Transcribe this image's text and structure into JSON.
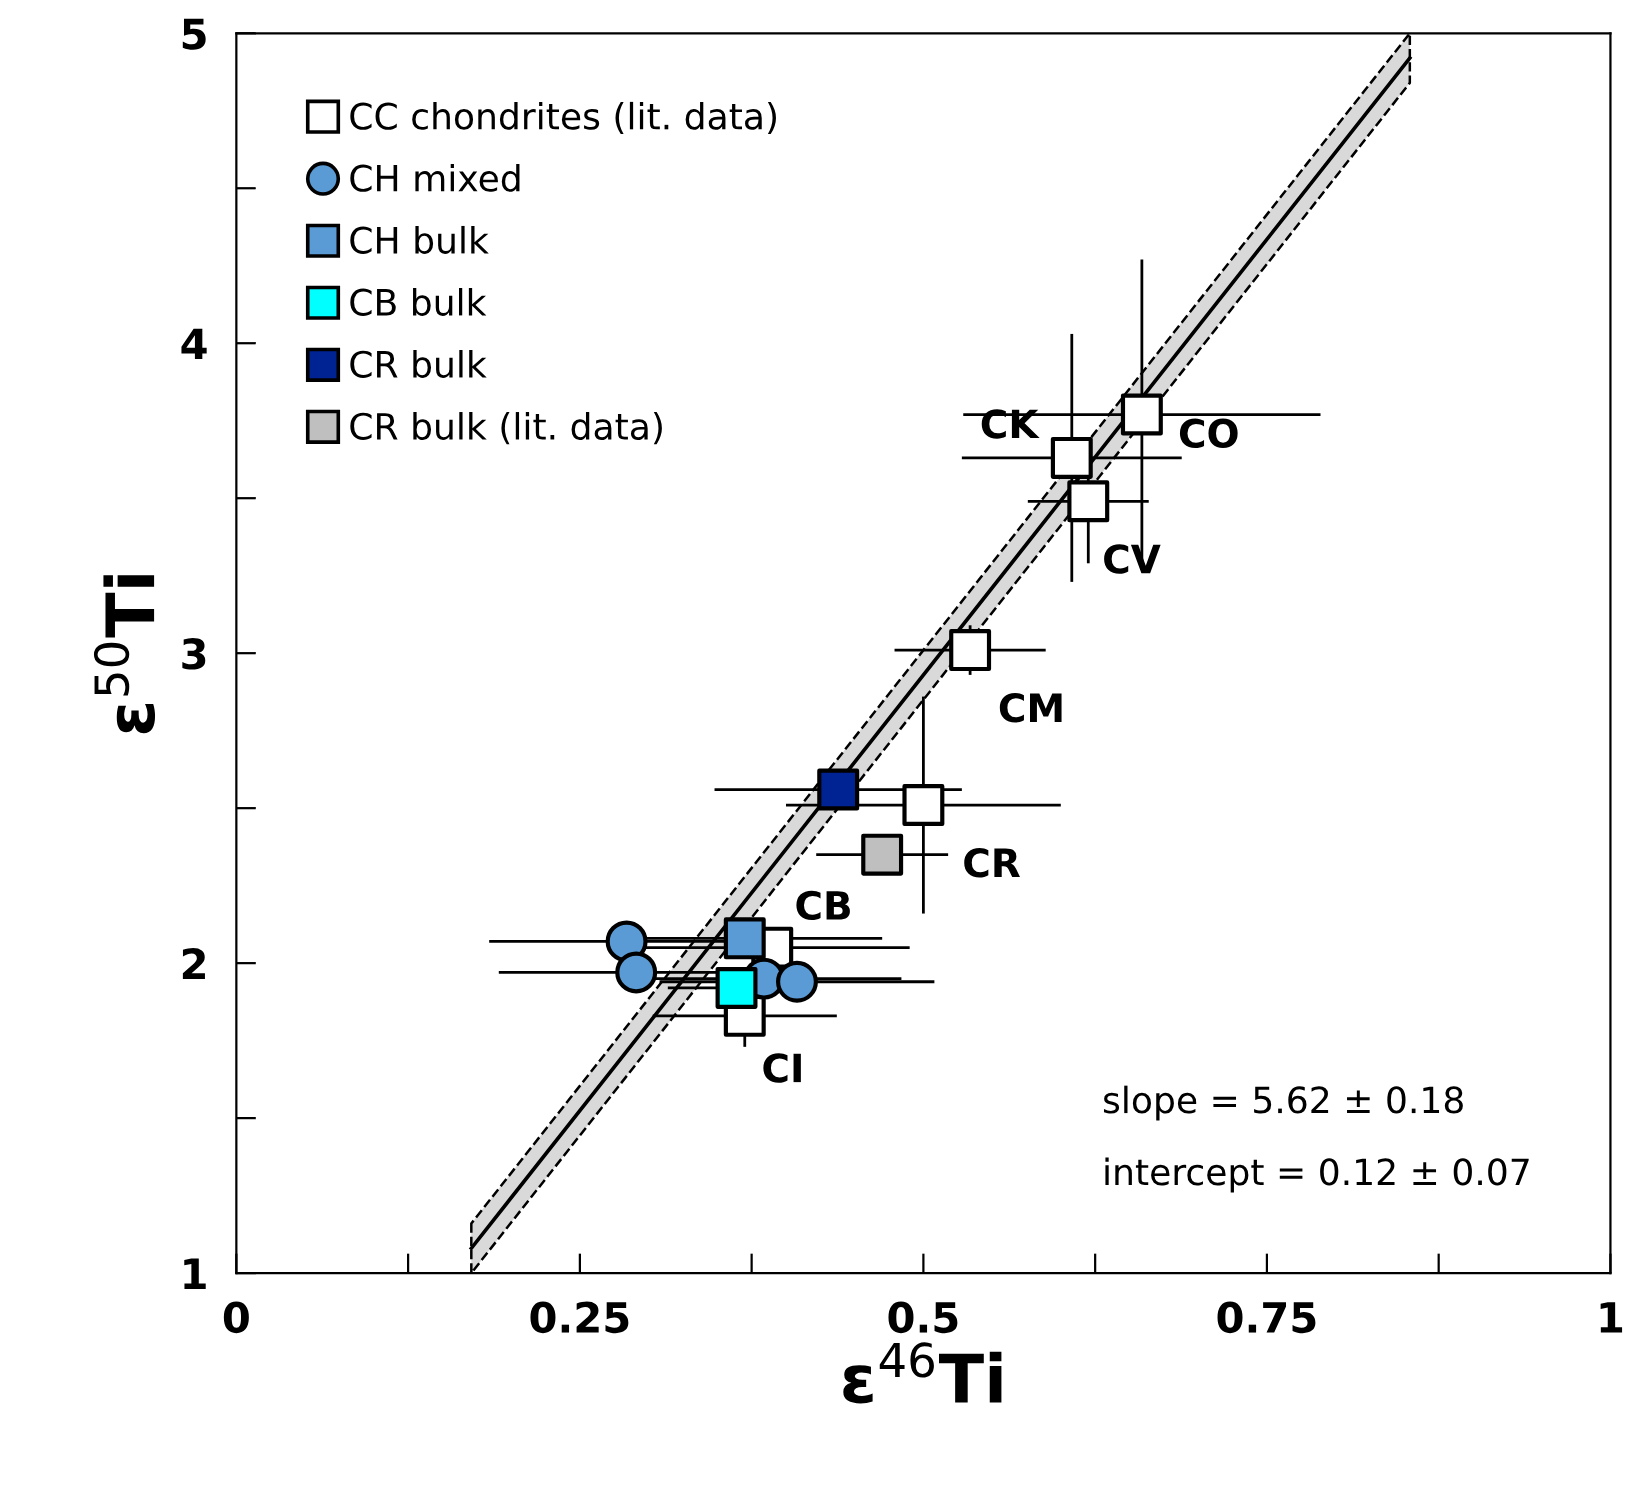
{
  "chart_data": {
    "type": "scatter",
    "xlabel": "ε$^{46}$Ti",
    "ylabel": "ε$^{50}$Ti",
    "xlim": [
      0,
      1
    ],
    "ylim": [
      1,
      5
    ],
    "xticks": [
      0,
      {
        "value": 0.125,
        "label": null
      },
      0.25,
      {
        "value": 0.375,
        "label": null
      },
      0.5,
      {
        "value": 0.625,
        "label": null
      },
      0.75,
      {
        "value": 0.875,
        "label": null
      },
      1
    ],
    "yticks": [
      1,
      {
        "value": 1.5,
        "label": null
      },
      2,
      {
        "value": 2.5,
        "label": null
      },
      3,
      {
        "value": 3.5,
        "label": null
      },
      4,
      {
        "value": 4.5,
        "label": null
      },
      5
    ],
    "grid": false,
    "legend": "top left",
    "series": [
      {
        "type": "line",
        "color": "#000000",
        "x": [
          0.171,
          0.854
        ],
        "values": [
          1.08,
          4.92
        ],
        "lower": [
          1.0,
          4.84
        ],
        "upper": [
          1.16,
          5.0
        ],
        "marker": "none"
      },
      {
        "name": "CC chondrites (lit. data)",
        "color": "#ffffff",
        "marker": "square",
        "x": [
          0.659,
          0.608,
          0.62,
          0.534,
          0.5,
          0.39,
          0.37
        ],
        "values": [
          3.77,
          3.63,
          3.49,
          3.01,
          2.51,
          2.05,
          1.83
        ],
        "value_labels": [
          "CO",
          "CK",
          "CV",
          "CM",
          "CR",
          "CB",
          "CI"
        ],
        "xerrors": [
          0.13,
          0.08,
          0.044,
          0.055,
          0.1,
          0.1,
          0.067
        ],
        "errors": [
          0.5,
          0.4,
          0.2,
          0.08,
          0.35,
          0.05,
          0.1
        ]
      },
      {
        "name": "CH mixed",
        "color": "#5b9bd5",
        "marker": "circle",
        "x": [
          0.284,
          0.291,
          0.355,
          0.384,
          0.408
        ],
        "values": [
          2.07,
          1.97,
          null,
          1.95,
          1.94
        ],
        "xerrors": [
          0.1,
          0.1,
          null,
          0.1,
          0.1
        ]
      },
      {
        "name": "CH bulk",
        "color": "#5b9bd5",
        "marker": "square",
        "x": [
          0.37
        ],
        "values": [
          2.08
        ],
        "xerrors": [
          0.1
        ]
      },
      {
        "name": "CB bulk",
        "color": "#00ffff",
        "marker": "square",
        "x": [
          0.364
        ],
        "values": [
          1.92
        ],
        "xerrors": [
          0.05
        ]
      },
      {
        "name": "CR bulk",
        "color": "#002394",
        "marker": "square",
        "x": [
          0.438
        ],
        "values": [
          2.56
        ],
        "xerrors": [
          0.09
        ]
      },
      {
        "name": "CR bulk (lit. data)",
        "color": "#bfbfbf",
        "marker": "square",
        "x": [
          0.47
        ],
        "values": [
          2.35
        ],
        "xerrors": [
          0.048
        ]
      }
    ],
    "annotations": [
      "slope = 5.62 ± 0.18",
      "intercept = 0.12 ± 0.07"
    ]
  }
}
